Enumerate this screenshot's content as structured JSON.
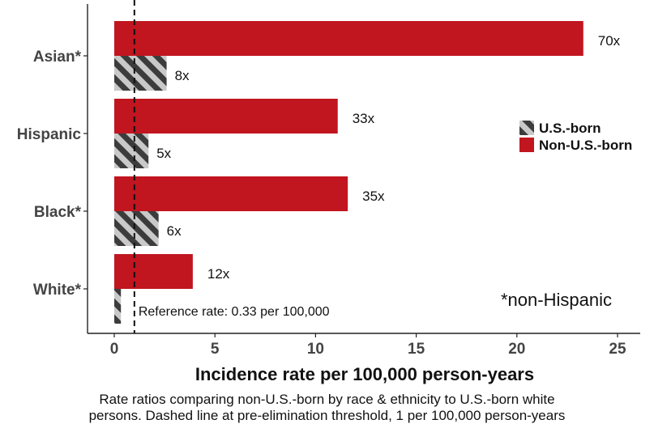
{
  "chart_data": {
    "type": "bar",
    "orientation": "horizontal",
    "categories": [
      "Asian*",
      "Hispanic",
      "Black*",
      "White*"
    ],
    "series": [
      {
        "name": "Non-U.S.-born",
        "values": [
          23.3,
          11.1,
          11.6,
          3.9
        ],
        "labels": [
          "70x",
          "33x",
          "35x",
          "12x"
        ],
        "color": "#c1151f"
      },
      {
        "name": "U.S.-born",
        "values": [
          2.6,
          1.7,
          2.2,
          0.33
        ],
        "labels": [
          "8x",
          "5x",
          "6x",
          ""
        ],
        "color": "#4a4a4a"
      }
    ],
    "xlabel": "Incidence rate per 100,000 person-years",
    "xlim": [
      0,
      25
    ],
    "xticks": [
      "0",
      "5",
      "10",
      "15",
      "20",
      "25"
    ],
    "reference_line": {
      "value": 1,
      "style": "dashed"
    },
    "annotation": "Reference rate: 0.33 per 100,000",
    "legend_position": "right",
    "grid": false
  },
  "note": "*non-Hispanic",
  "caption_lines": [
    "Rate ratios comparing non-U.S.-born by race & ethnicity to U.S.-born white",
    "persons. Dashed line at pre-elimination threshold, 1 per 100,000 person-years"
  ]
}
